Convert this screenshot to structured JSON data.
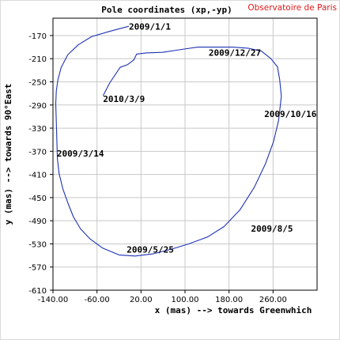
{
  "chart_data": {
    "type": "line",
    "title": "Pole coordinates (xp,-yp)",
    "credit": "Observatoire de Paris",
    "xlabel": "x (mas) --> towards Greenwhich",
    "ylabel": "y (mas) --> towards 90°East",
    "xlim": [
      -140,
      340
    ],
    "ylim": [
      -610,
      -140
    ],
    "xticks": [
      -140,
      -60,
      20,
      100,
      180,
      260
    ],
    "xtick_labels": [
      "-140.00",
      "-60.00",
      "20.00",
      "100.00",
      "180.00",
      "260.00"
    ],
    "yticks": [
      -170,
      -210,
      -250,
      -290,
      -330,
      -370,
      -410,
      -450,
      -490,
      -530,
      -570,
      -610
    ],
    "grid": true,
    "colors": {
      "series": "#1e32b4",
      "credit": "#e01818",
      "grid": "#c8c8c8",
      "frame": "#000000"
    },
    "series": [
      {
        "x": [
          -2,
          -38,
          -70,
          -94,
          -113,
          -125,
          -131,
          -134,
          -135,
          -134,
          -133,
          -132,
          -129,
          -122,
          -113,
          -103,
          -90,
          -73,
          -50,
          -20,
          9,
          43,
          76,
          107,
          141,
          171,
          200,
          226,
          246,
          261,
          270,
          275,
          272,
          268,
          256,
          239,
          216,
          187,
          159,
          123,
          94,
          59,
          29,
          12,
          7,
          -4,
          -18,
          -37,
          -49
        ],
        "y": [
          -154,
          -163,
          -172,
          -186,
          -203,
          -225,
          -246,
          -266,
          -288,
          -318,
          -351,
          -383,
          -408,
          -435,
          -459,
          -483,
          -504,
          -521,
          -537,
          -549,
          -551,
          -547,
          -539,
          -530,
          -518,
          -500,
          -471,
          -432,
          -392,
          -353,
          -317,
          -275,
          -246,
          -224,
          -210,
          -197,
          -192,
          -190,
          -190,
          -190,
          -194,
          -199,
          -200,
          -202,
          -212,
          -220,
          -225,
          -252,
          -274
        ]
      }
    ],
    "annotations": [
      {
        "text": "2009/1/1",
        "x": -2,
        "y": -160
      },
      {
        "text": "2009/12/27",
        "x": 143,
        "y": -205
      },
      {
        "text": "2010/3/9",
        "x": -49,
        "y": -285
      },
      {
        "text": "2009/10/16",
        "x": 244,
        "y": -311
      },
      {
        "text": "2009/3/14",
        "x": -133,
        "y": -379
      },
      {
        "text": "2009/8/5",
        "x": 220,
        "y": -509
      },
      {
        "text": "2009/5/25",
        "x": -6,
        "y": -545
      }
    ]
  }
}
